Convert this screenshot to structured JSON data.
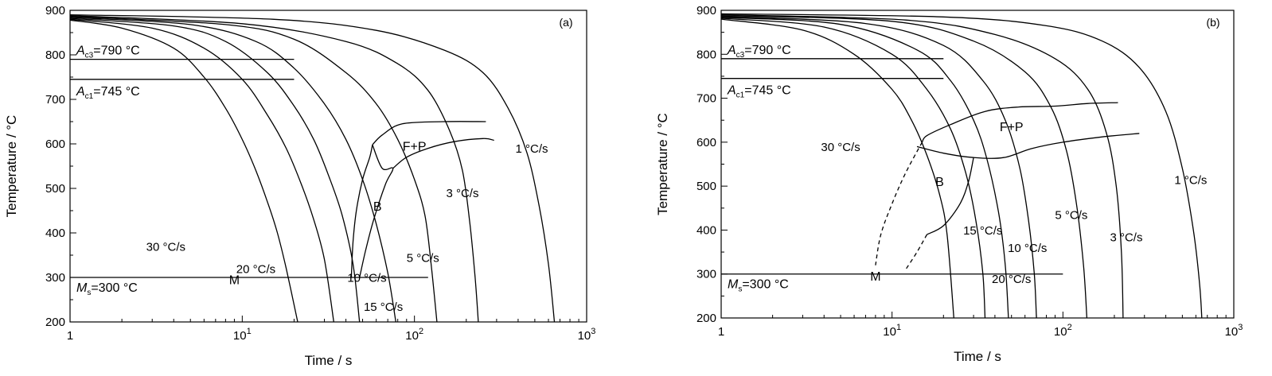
{
  "colors": {
    "line": "#000000",
    "background": "#ffffff"
  },
  "chart_data": [
    {
      "type": "line",
      "panel_label": "(a)",
      "xlabel": "Time / s",
      "ylabel": "Temperature / °C",
      "xscale": "log",
      "xlim": [
        1,
        1000
      ],
      "ylim": [
        200,
        900
      ],
      "x_ticks": [
        {
          "value": 1,
          "base": "1",
          "exp": ""
        },
        {
          "value": 10,
          "base": "10",
          "exp": "1"
        },
        {
          "value": 100,
          "base": "10",
          "exp": "2"
        },
        {
          "value": 1000,
          "base": "10",
          "exp": "3"
        }
      ],
      "y_ticks": [
        "200",
        "300",
        "400",
        "500",
        "600",
        "700",
        "800",
        "900"
      ],
      "grid": false,
      "reference_lines": [
        {
          "name": "Ac3",
          "label_main": "A",
          "label_sub": "c3",
          "label_rest": "=790 °C",
          "y": 790,
          "x_end": 20
        },
        {
          "name": "Ac1",
          "label_main": "A",
          "label_sub": "c1",
          "label_rest": "=745 °C",
          "y": 745,
          "x_end": 20
        },
        {
          "name": "Ms",
          "label_main": "M",
          "label_sub": "s",
          "label_rest": "=300 °C",
          "y": 300,
          "x_end": 120
        }
      ],
      "series": [
        {
          "name": "30 °C/s",
          "label": "30 °C/s",
          "label_at": [
            3.6,
            360
          ],
          "points": [
            [
              1,
              878
            ],
            [
              2,
              860
            ],
            [
              4,
              815
            ],
            [
              6,
              750
            ],
            [
              8,
              680
            ],
            [
              10,
              610
            ],
            [
              12,
              540
            ],
            [
              14,
              470
            ],
            [
              16,
              400
            ],
            [
              18,
              320
            ],
            [
              21,
              200
            ]
          ]
        },
        {
          "name": "20 °C/s",
          "label": "20 °C/s",
          "label_at": [
            12,
            310
          ],
          "points": [
            [
              1,
              880
            ],
            [
              3,
              860
            ],
            [
              6,
              815
            ],
            [
              10,
              745
            ],
            [
              14,
              665
            ],
            [
              18,
              590
            ],
            [
              22,
              510
            ],
            [
              26,
              430
            ],
            [
              30,
              340
            ],
            [
              34,
              200
            ]
          ]
        },
        {
          "name": "15 °C/s",
          "label": "15 °C/s",
          "label_at": [
            66,
            225
          ],
          "points": [
            [
              1,
              882
            ],
            [
              4,
              865
            ],
            [
              8,
              830
            ],
            [
              14,
              760
            ],
            [
              20,
              685
            ],
            [
              26,
              610
            ],
            [
              32,
              525
            ],
            [
              38,
              440
            ],
            [
              44,
              330
            ],
            [
              48,
              200
            ]
          ]
        },
        {
          "name": "10 °C/s",
          "label": "10 °C/s",
          "label_at": [
            53,
            290
          ],
          "points": [
            [
              1,
              884
            ],
            [
              5,
              868
            ],
            [
              12,
              830
            ],
            [
              20,
              770
            ],
            [
              30,
              690
            ],
            [
              40,
              610
            ],
            [
              50,
              520
            ],
            [
              60,
              420
            ],
            [
              70,
              310
            ],
            [
              78,
              200
            ]
          ]
        },
        {
          "name": "5 °C/s",
          "label": "5 °C/s",
          "label_at": [
            112,
            335
          ],
          "points": [
            [
              1,
              886
            ],
            [
              8,
              868
            ],
            [
              20,
              835
            ],
            [
              40,
              760
            ],
            [
              60,
              690
            ],
            [
              80,
              610
            ],
            [
              100,
              520
            ],
            [
              115,
              440
            ],
            [
              125,
              330
            ],
            [
              135,
              200
            ]
          ]
        },
        {
          "name": "3 °C/s",
          "label": "3 °C/s",
          "label_at": [
            190,
            480
          ],
          "points": [
            [
              1,
              888
            ],
            [
              10,
              870
            ],
            [
              40,
              830
            ],
            [
              80,
              780
            ],
            [
              120,
              720
            ],
            [
              160,
              630
            ],
            [
              190,
              540
            ],
            [
              210,
              420
            ],
            [
              225,
              300
            ],
            [
              235,
              200
            ]
          ]
        },
        {
          "name": "1 °C/s",
          "label": "1 °C/s",
          "label_at": [
            480,
            580
          ],
          "points": [
            [
              1,
              890
            ],
            [
              15,
              880
            ],
            [
              60,
              855
            ],
            [
              150,
              810
            ],
            [
              250,
              760
            ],
            [
              350,
              680
            ],
            [
              450,
              580
            ],
            [
              530,
              460
            ],
            [
              600,
              330
            ],
            [
              650,
              200
            ]
          ]
        }
      ],
      "phase_boundaries": [
        {
          "name": "F+P start",
          "dashed": false,
          "points": [
            [
              57,
              598
            ],
            [
              65,
              620
            ],
            [
              85,
              645
            ],
            [
              150,
              650
            ],
            [
              260,
              650
            ]
          ]
        },
        {
          "name": "F+P finish",
          "dashed": false,
          "points": [
            [
              75,
              545
            ],
            [
              90,
              570
            ],
            [
              120,
              590
            ],
            [
              170,
              605
            ],
            [
              250,
              612
            ],
            [
              290,
              608
            ]
          ]
        },
        {
          "name": "B start",
          "dashed": false,
          "points": [
            [
              57,
              598
            ],
            [
              55,
              570
            ],
            [
              50,
              520
            ],
            [
              46,
              450
            ],
            [
              44,
              380
            ],
            [
              43,
              300
            ]
          ]
        },
        {
          "name": "B finish",
          "dashed": false,
          "points": [
            [
              57,
              598
            ],
            [
              65,
              545
            ],
            [
              75,
              545
            ],
            [
              68,
              510
            ],
            [
              58,
              430
            ],
            [
              52,
              360
            ],
            [
              48,
              300
            ]
          ]
        }
      ],
      "phase_labels": [
        {
          "text": "F+P",
          "x": 100,
          "y": 585
        },
        {
          "text": "B",
          "x": 61,
          "y": 450
        },
        {
          "text": "M",
          "x": 9,
          "y": 285
        }
      ]
    },
    {
      "type": "line",
      "panel_label": "(b)",
      "xlabel": "Time / s",
      "ylabel": "Temperature / °C",
      "xscale": "log",
      "xlim": [
        1,
        1000
      ],
      "ylim": [
        200,
        900
      ],
      "x_ticks": [
        {
          "value": 1,
          "base": "1",
          "exp": ""
        },
        {
          "value": 10,
          "base": "10",
          "exp": "1"
        },
        {
          "value": 100,
          "base": "10",
          "exp": "2"
        },
        {
          "value": 1000,
          "base": "10",
          "exp": "3"
        }
      ],
      "y_ticks": [
        "200",
        "300",
        "400",
        "500",
        "600",
        "700",
        "800",
        "900"
      ],
      "grid": false,
      "reference_lines": [
        {
          "name": "Ac3",
          "label_main": "A",
          "label_sub": "c3",
          "label_rest": "=790 °C",
          "y": 790,
          "x_end": 20
        },
        {
          "name": "Ac1",
          "label_main": "A",
          "label_sub": "c1",
          "label_rest": "=745 °C",
          "y": 745,
          "x_end": 20
        },
        {
          "name": "Ms",
          "label_main": "M",
          "label_sub": "s",
          "label_rest": "=300 °C",
          "y": 300,
          "x_end": 100
        }
      ],
      "series": [
        {
          "name": "30 °C/s",
          "label": "30 °C/s",
          "label_at": [
            5,
            580
          ],
          "points": [
            [
              1,
              880
            ],
            [
              3,
              855
            ],
            [
              6,
              800
            ],
            [
              10,
              720
            ],
            [
              13,
              650
            ],
            [
              16,
              570
            ],
            [
              19,
              480
            ],
            [
              21,
              390
            ],
            [
              23,
              200
            ]
          ]
        },
        {
          "name": "20 °C/s",
          "label": "20 °C/s",
          "label_at": [
            50,
            280
          ],
          "points": [
            [
              1,
              882
            ],
            [
              4,
              862
            ],
            [
              10,
              800
            ],
            [
              16,
              720
            ],
            [
              22,
              630
            ],
            [
              27,
              530
            ],
            [
              31,
              420
            ],
            [
              34,
              300
            ],
            [
              35,
              200
            ]
          ]
        },
        {
          "name": "15 °C/s",
          "label": "15 °C/s",
          "label_at": [
            34,
            390
          ],
          "points": [
            [
              1,
              884
            ],
            [
              5,
              868
            ],
            [
              14,
              810
            ],
            [
              22,
              740
            ],
            [
              30,
              650
            ],
            [
              36,
              560
            ],
            [
              42,
              440
            ],
            [
              46,
              320
            ],
            [
              48,
              200
            ]
          ]
        },
        {
          "name": "10 °C/s",
          "label": "10 °C/s",
          "label_at": [
            62,
            350
          ],
          "points": [
            [
              1,
              886
            ],
            [
              7,
              870
            ],
            [
              20,
              820
            ],
            [
              34,
              740
            ],
            [
              46,
              650
            ],
            [
              56,
              540
            ],
            [
              63,
              420
            ],
            [
              68,
              300
            ],
            [
              70,
              200
            ]
          ]
        },
        {
          "name": "5 °C/s",
          "label": "5 °C/s",
          "label_at": [
            112,
            425
          ],
          "points": [
            [
              1,
              888
            ],
            [
              10,
              875
            ],
            [
              30,
              830
            ],
            [
              60,
              760
            ],
            [
              85,
              680
            ],
            [
              105,
              580
            ],
            [
              120,
              460
            ],
            [
              132,
              320
            ],
            [
              138,
              200
            ]
          ]
        },
        {
          "name": "3 °C/s",
          "label": "3 °C/s",
          "label_at": [
            235,
            375
          ],
          "points": [
            [
              1,
              890
            ],
            [
              12,
              878
            ],
            [
              40,
              845
            ],
            [
              90,
              790
            ],
            [
              140,
              720
            ],
            [
              180,
              620
            ],
            [
              205,
              500
            ],
            [
              220,
              350
            ],
            [
              225,
              200
            ]
          ]
        },
        {
          "name": "1 °C/s",
          "label": "1 °C/s",
          "label_at": [
            560,
            505
          ],
          "points": [
            [
              1,
              892
            ],
            [
              20,
              885
            ],
            [
              80,
              865
            ],
            [
              170,
              830
            ],
            [
              280,
              770
            ],
            [
              400,
              670
            ],
            [
              500,
              540
            ],
            [
              580,
              400
            ],
            [
              630,
              280
            ],
            [
              650,
              200
            ]
          ]
        }
      ],
      "phase_boundaries": [
        {
          "name": "F+P start",
          "dashed": false,
          "points": [
            [
              15,
              600
            ],
            [
              16,
              615
            ],
            [
              22,
              640
            ],
            [
              35,
              670
            ],
            [
              55,
              680
            ],
            [
              90,
              682
            ],
            [
              140,
              688
            ],
            [
              210,
              690
            ]
          ]
        },
        {
          "name": "F+P finish",
          "dashed": false,
          "points": [
            [
              14,
              590
            ],
            [
              20,
              575
            ],
            [
              30,
              565
            ],
            [
              45,
              565
            ],
            [
              65,
              585
            ],
            [
              100,
              600
            ],
            [
              170,
              612
            ],
            [
              280,
              620
            ]
          ]
        },
        {
          "name": "B start (dashed)",
          "dashed": true,
          "points": [
            [
              15,
              600
            ],
            [
              12,
              530
            ],
            [
              10,
              460
            ],
            [
              8.6,
              390
            ],
            [
              8,
              320
            ]
          ]
        },
        {
          "name": "B finish",
          "dashed": false,
          "points": [
            [
              30,
              565
            ],
            [
              28,
              510
            ],
            [
              25,
              460
            ],
            [
              20,
              410
            ],
            [
              16,
              390
            ]
          ]
        },
        {
          "name": "B finish (dashed)",
          "dashed": true,
          "points": [
            [
              16,
              390
            ],
            [
              14,
              350
            ],
            [
              12,
              310
            ]
          ]
        }
      ],
      "phase_labels": [
        {
          "text": "F+P",
          "x": 50,
          "y": 625
        },
        {
          "text": "B",
          "x": 19,
          "y": 500
        },
        {
          "text": "M",
          "x": 8,
          "y": 285
        }
      ]
    }
  ]
}
